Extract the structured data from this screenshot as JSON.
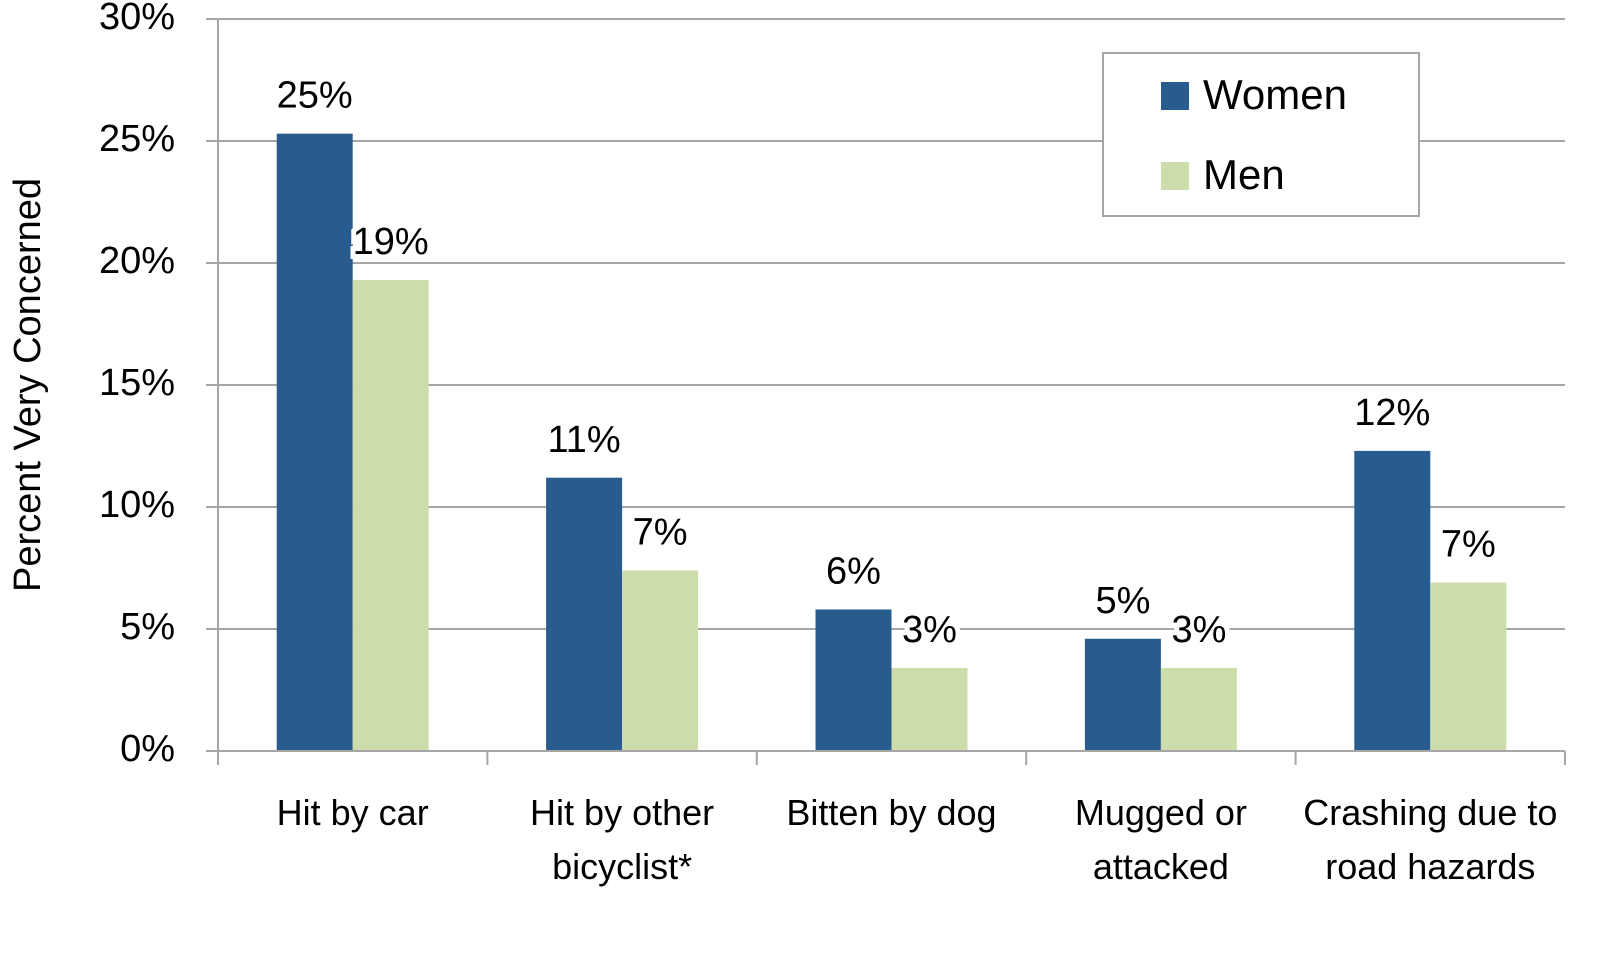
{
  "chart_data": {
    "type": "bar",
    "y_label": "Percent Very Concerned",
    "categories": [
      "Hit by car",
      "Hit by other bicyclist*",
      "Bitten by dog",
      "Mugged or attacked",
      "Crashing due to road hazards"
    ],
    "series": [
      {
        "name": "Women",
        "color": "#285c8f",
        "values": [
          25.3,
          11.2,
          5.8,
          4.6,
          12.3
        ],
        "value_labels": [
          "25%",
          "11%",
          "6%",
          "5%",
          "12%"
        ]
      },
      {
        "name": "Men",
        "color": "#cddcab",
        "values": [
          19.3,
          7.4,
          3.4,
          3.4,
          6.9
        ],
        "value_labels": [
          "19%",
          "7%",
          "3%",
          "3%",
          "7%"
        ]
      }
    ],
    "ylim": [
      0,
      30
    ],
    "yticks": [
      {
        "value": 0,
        "label": "0%"
      },
      {
        "value": 5,
        "label": "5%"
      },
      {
        "value": 10,
        "label": "10%"
      },
      {
        "value": 15,
        "label": "15%"
      },
      {
        "value": 20,
        "label": "20%"
      },
      {
        "value": 25,
        "label": "25%"
      },
      {
        "value": 30,
        "label": "30%"
      }
    ],
    "grid": true,
    "legend": "upper-right"
  }
}
